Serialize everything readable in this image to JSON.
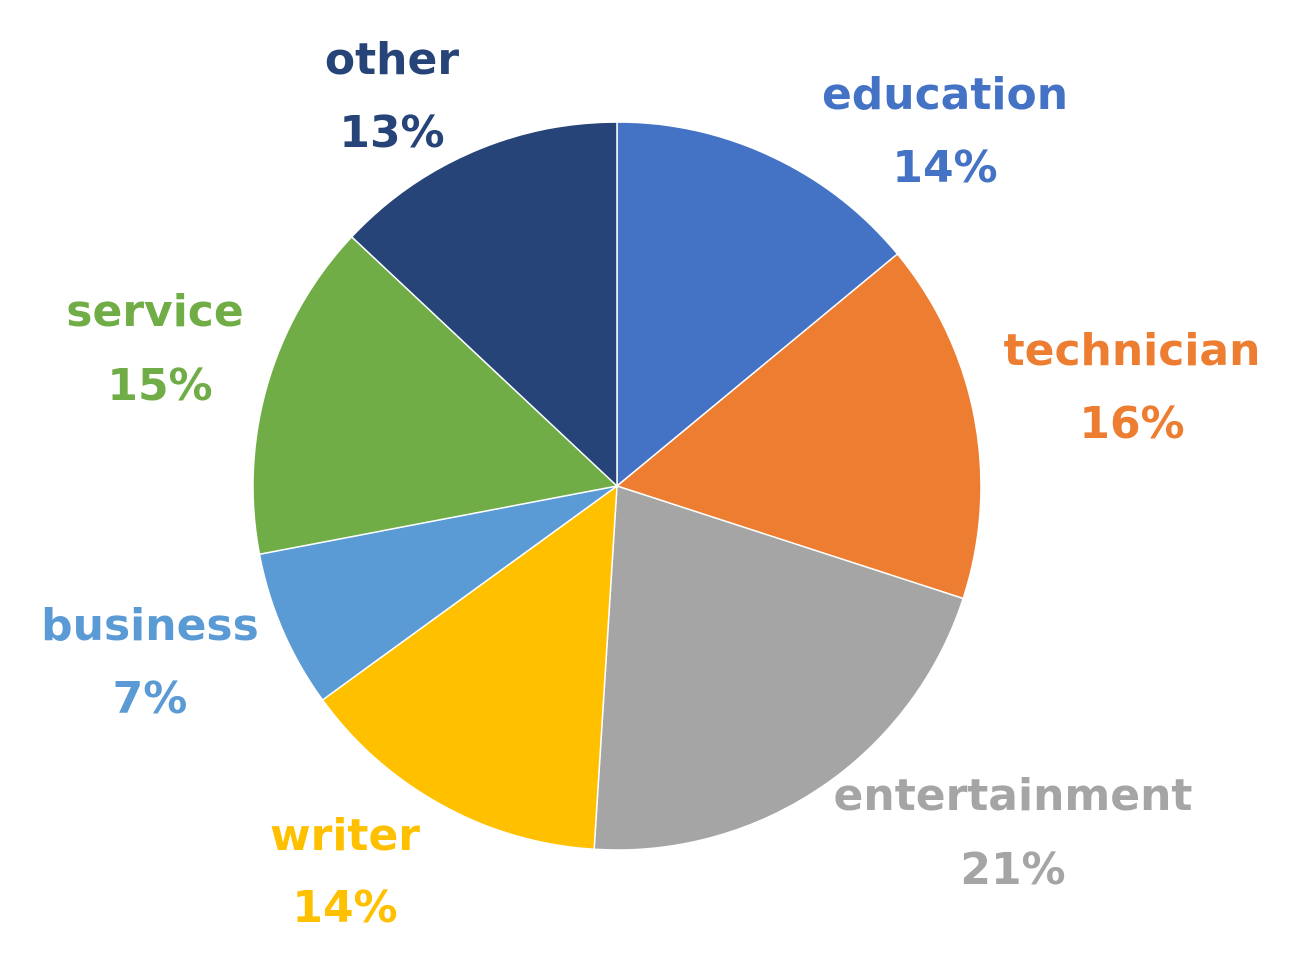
{
  "chart_data": {
    "type": "pie",
    "categories": [
      "education",
      "technician",
      "entertainment",
      "writer",
      "business",
      "service",
      "other"
    ],
    "values": [
      14,
      16,
      21,
      14,
      7,
      15,
      13
    ],
    "value_labels": [
      "14%",
      "16%",
      "21%",
      "14%",
      "7%",
      "15%",
      "13%"
    ],
    "colors": [
      "#4472c4",
      "#ed7d31",
      "#a5a5a5",
      "#ffc000",
      "#5b9bd5",
      "#70ad47",
      "#264478"
    ]
  }
}
